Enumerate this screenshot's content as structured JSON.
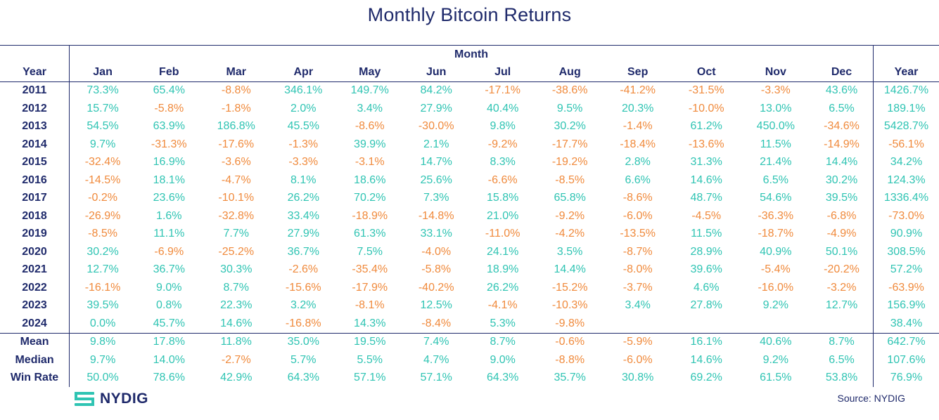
{
  "title": "Monthly Bitcoin Returns",
  "month_header": "Month",
  "columns": [
    "Year",
    "Jan",
    "Feb",
    "Mar",
    "Apr",
    "May",
    "Jun",
    "Jul",
    "Aug",
    "Sep",
    "Oct",
    "Nov",
    "Dec",
    "Year"
  ],
  "colors": {
    "positive": "#2fc4b3",
    "negative": "#f08a3c",
    "text": "#1f2a6b"
  },
  "chart_data": {
    "type": "table",
    "title": "Monthly Bitcoin Returns",
    "rows": [
      {
        "label": "2011",
        "values": [
          "73.3%",
          "65.4%",
          "-8.8%",
          "346.1%",
          "149.7%",
          "84.2%",
          "-17.1%",
          "-38.6%",
          "-41.2%",
          "-31.5%",
          "-3.3%",
          "43.6%"
        ],
        "total": "1426.7%"
      },
      {
        "label": "2012",
        "values": [
          "15.7%",
          "-5.8%",
          "-1.8%",
          "2.0%",
          "3.4%",
          "27.9%",
          "40.4%",
          "9.5%",
          "20.3%",
          "-10.0%",
          "13.0%",
          "6.5%"
        ],
        "total": "189.1%"
      },
      {
        "label": "2013",
        "values": [
          "54.5%",
          "63.9%",
          "186.8%",
          "45.5%",
          "-8.6%",
          "-30.0%",
          "9.8%",
          "30.2%",
          "-1.4%",
          "61.2%",
          "450.0%",
          "-34.6%"
        ],
        "total": "5428.7%"
      },
      {
        "label": "2014",
        "values": [
          "9.7%",
          "-31.3%",
          "-17.6%",
          "-1.3%",
          "39.9%",
          "2.1%",
          "-9.2%",
          "-17.7%",
          "-18.4%",
          "-13.6%",
          "11.5%",
          "-14.9%"
        ],
        "total": "-56.1%"
      },
      {
        "label": "2015",
        "values": [
          "-32.4%",
          "16.9%",
          "-3.6%",
          "-3.3%",
          "-3.1%",
          "14.7%",
          "8.3%",
          "-19.2%",
          "2.8%",
          "31.3%",
          "21.4%",
          "14.4%"
        ],
        "total": "34.2%"
      },
      {
        "label": "2016",
        "values": [
          "-14.5%",
          "18.1%",
          "-4.7%",
          "8.1%",
          "18.6%",
          "25.6%",
          "-6.6%",
          "-8.5%",
          "6.6%",
          "14.6%",
          "6.5%",
          "30.2%"
        ],
        "total": "124.3%"
      },
      {
        "label": "2017",
        "values": [
          "-0.2%",
          "23.6%",
          "-10.1%",
          "26.2%",
          "70.2%",
          "7.3%",
          "15.8%",
          "65.8%",
          "-8.6%",
          "48.7%",
          "54.6%",
          "39.5%"
        ],
        "total": "1336.4%"
      },
      {
        "label": "2018",
        "values": [
          "-26.9%",
          "1.6%",
          "-32.8%",
          "33.4%",
          "-18.9%",
          "-14.8%",
          "21.0%",
          "-9.2%",
          "-6.0%",
          "-4.5%",
          "-36.3%",
          "-6.8%"
        ],
        "total": "-73.0%"
      },
      {
        "label": "2019",
        "values": [
          "-8.5%",
          "11.1%",
          "7.7%",
          "27.9%",
          "61.3%",
          "33.1%",
          "-11.0%",
          "-4.2%",
          "-13.5%",
          "11.5%",
          "-18.7%",
          "-4.9%"
        ],
        "total": "90.9%"
      },
      {
        "label": "2020",
        "values": [
          "30.2%",
          "-6.9%",
          "-25.2%",
          "36.7%",
          "7.5%",
          "-4.0%",
          "24.1%",
          "3.5%",
          "-8.7%",
          "28.9%",
          "40.9%",
          "50.1%"
        ],
        "total": "308.5%"
      },
      {
        "label": "2021",
        "values": [
          "12.7%",
          "36.7%",
          "30.3%",
          "-2.6%",
          "-35.4%",
          "-5.8%",
          "18.9%",
          "14.4%",
          "-8.0%",
          "39.6%",
          "-5.4%",
          "-20.2%"
        ],
        "total": "57.2%"
      },
      {
        "label": "2022",
        "values": [
          "-16.1%",
          "9.0%",
          "8.7%",
          "-15.6%",
          "-17.9%",
          "-40.2%",
          "26.2%",
          "-15.2%",
          "-3.7%",
          "4.6%",
          "-16.0%",
          "-3.2%"
        ],
        "total": "-63.9%"
      },
      {
        "label": "2023",
        "values": [
          "39.5%",
          "0.8%",
          "22.3%",
          "3.2%",
          "-8.1%",
          "12.5%",
          "-4.1%",
          "-10.3%",
          "3.4%",
          "27.8%",
          "9.2%",
          "12.7%"
        ],
        "total": "156.9%"
      },
      {
        "label": "2024",
        "values": [
          "0.0%",
          "45.7%",
          "14.6%",
          "-16.8%",
          "14.3%",
          "-8.4%",
          "5.3%",
          "-9.8%",
          "",
          "",
          "",
          ""
        ],
        "total": "38.4%"
      }
    ],
    "stats": [
      {
        "label": "Mean",
        "values": [
          "9.8%",
          "17.8%",
          "11.8%",
          "35.0%",
          "19.5%",
          "7.4%",
          "8.7%",
          "-0.6%",
          "-5.9%",
          "16.1%",
          "40.6%",
          "8.7%"
        ],
        "total": "642.7%"
      },
      {
        "label": "Median",
        "values": [
          "9.7%",
          "14.0%",
          "-2.7%",
          "5.7%",
          "5.5%",
          "4.7%",
          "9.0%",
          "-8.8%",
          "-6.0%",
          "14.6%",
          "9.2%",
          "6.5%"
        ],
        "total": "107.6%"
      },
      {
        "label": "Win Rate",
        "values": [
          "50.0%",
          "78.6%",
          "42.9%",
          "64.3%",
          "57.1%",
          "57.1%",
          "64.3%",
          "35.7%",
          "30.8%",
          "69.2%",
          "61.5%",
          "53.8%"
        ],
        "total": "76.9%"
      }
    ]
  },
  "footer": {
    "logo_text": "NYDIG",
    "source": "Source: NYDIG"
  }
}
